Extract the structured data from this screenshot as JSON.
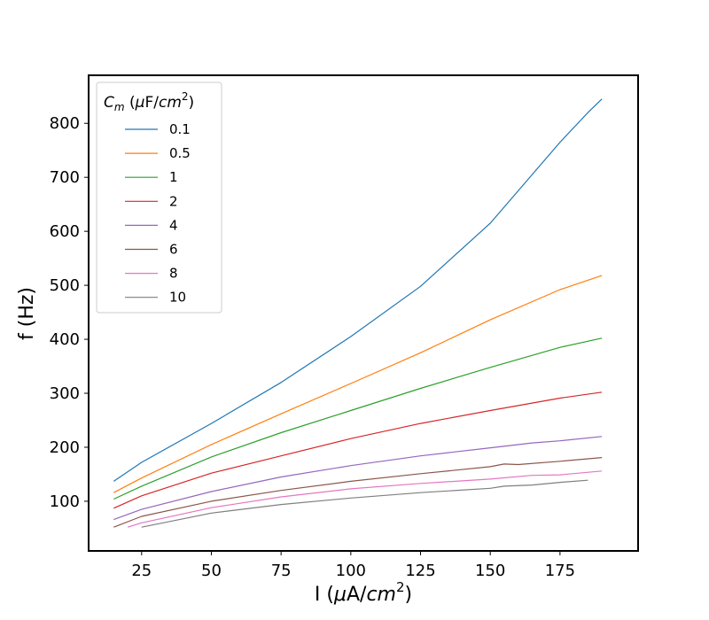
{
  "chart_data": {
    "type": "line",
    "xlabel_main": "I (",
    "xlabel_mu": "μ",
    "xlabel_unit": "A/",
    "xlabel_cm": "cm",
    "xlabel_exp": "2",
    "xlabel_close": ")",
    "ylabel": "f (Hz)",
    "xlim": [
      6,
      203
    ],
    "ylim": [
      8,
      889
    ],
    "xticks": [
      25,
      50,
      75,
      100,
      125,
      150,
      175
    ],
    "yticks": [
      100,
      200,
      300,
      400,
      500,
      600,
      700,
      800
    ],
    "grid": false,
    "legend": {
      "placement": "top-left",
      "title_c": "C",
      "title_sub": "m",
      "title_open": " (",
      "title_mu": "μ",
      "title_unit": "F/",
      "title_cm": "cm",
      "title_exp": "2",
      "title_close": ")"
    },
    "series": [
      {
        "name": "0.1",
        "color": "#1f77b4",
        "x": [
          15,
          25,
          50,
          75,
          100,
          125,
          150,
          175,
          185,
          190
        ],
        "y": [
          137,
          172,
          244,
          320,
          405,
          498,
          615,
          765,
          820,
          845
        ]
      },
      {
        "name": "0.5",
        "color": "#ff7f0e",
        "x": [
          15,
          25,
          50,
          75,
          100,
          125,
          150,
          175,
          190
        ],
        "y": [
          116,
          143,
          205,
          262,
          318,
          375,
          436,
          492,
          518
        ]
      },
      {
        "name": "1",
        "color": "#2ca02c",
        "x": [
          15,
          25,
          50,
          75,
          100,
          125,
          150,
          175,
          190
        ],
        "y": [
          104,
          128,
          182,
          227,
          268,
          309,
          348,
          385,
          402
        ]
      },
      {
        "name": "2",
        "color": "#d62728",
        "x": [
          15,
          25,
          50,
          75,
          100,
          125,
          150,
          175,
          190
        ],
        "y": [
          87,
          110,
          152,
          184,
          216,
          244,
          268,
          291,
          302
        ]
      },
      {
        "name": "4",
        "color": "#9467bd",
        "x": [
          15,
          25,
          50,
          75,
          100,
          125,
          150,
          165,
          175,
          190
        ],
        "y": [
          66,
          85,
          118,
          145,
          166,
          184,
          199,
          208,
          212,
          220
        ]
      },
      {
        "name": "6",
        "color": "#8c564b",
        "x": [
          15,
          25,
          50,
          75,
          100,
          125,
          150,
          155,
          160,
          175,
          190
        ],
        "y": [
          52,
          72,
          100,
          120,
          137,
          151,
          164,
          169,
          168,
          174,
          181
        ]
      },
      {
        "name": "8",
        "color": "#e377c2",
        "x": [
          20,
          25,
          50,
          75,
          100,
          125,
          150,
          165,
          175,
          190
        ],
        "y": [
          52,
          60,
          88,
          108,
          123,
          133,
          141,
          148,
          149,
          156
        ]
      },
      {
        "name": "10",
        "color": "#7f7f7f",
        "x": [
          25,
          50,
          75,
          100,
          125,
          150,
          155,
          165,
          175,
          185
        ],
        "y": [
          52,
          78,
          94,
          106,
          116,
          124,
          128,
          130,
          135,
          139
        ]
      }
    ]
  }
}
